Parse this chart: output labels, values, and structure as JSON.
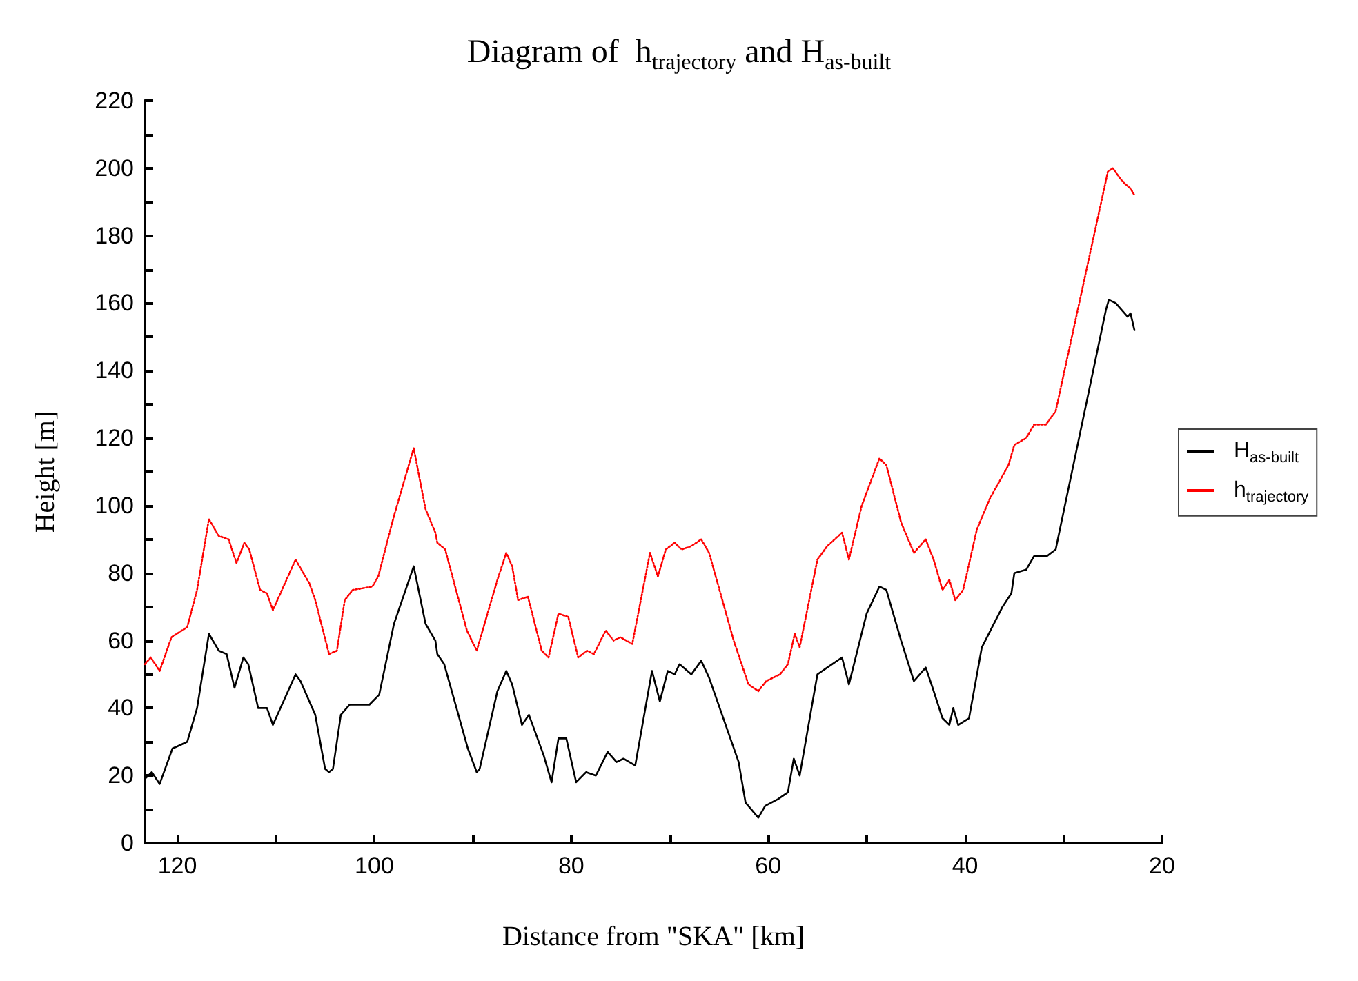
{
  "chart_data": {
    "type": "line",
    "title": "Diagram of  h$_{trajectory}$ and H$_{as-built}$",
    "xlabel": "Distance from \"SKA\" [km]",
    "ylabel": "Height [m]",
    "xlim": [
      123.3,
      20
    ],
    "xticks": [
      120,
      {
        "value": 110,
        "label": null
      },
      100,
      {
        "value": 90,
        "label": null
      },
      80,
      {
        "value": 70,
        "label": null
      },
      60,
      {
        "value": 50,
        "label": null
      },
      40,
      {
        "value": 30,
        "label": null
      },
      20
    ],
    "ylim": [
      0,
      220
    ],
    "yticks": [
      0,
      {
        "value": 10,
        "label": null
      },
      20,
      {
        "value": 30,
        "label": null
      },
      40,
      {
        "value": 50,
        "label": null
      },
      60,
      {
        "value": 70,
        "label": null
      },
      80,
      {
        "value": 90,
        "label": null
      },
      100,
      {
        "value": 110,
        "label": null
      },
      120,
      {
        "value": 130,
        "label": null
      },
      140,
      {
        "value": 150,
        "label": null
      },
      160,
      {
        "value": 170,
        "label": null
      },
      180,
      {
        "value": 190,
        "label": null
      },
      200,
      {
        "value": 210,
        "label": null
      },
      220
    ],
    "grid": false,
    "legend": "right",
    "marker": "none",
    "series": [
      {
        "name": "H$_{as-built}$",
        "color": "#000000",
        "line_style": "solid",
        "x": [
          123.3,
          122.6,
          121.8,
          120.5,
          119,
          118,
          116.8,
          115.8,
          115,
          114.2,
          113.3,
          112.8,
          111.8,
          110.9,
          110.3,
          108,
          107.5,
          106,
          105,
          104.6,
          104.2,
          103.4,
          102.5,
          100.5,
          99.5,
          98,
          96,
          94.8,
          93.8,
          93.6,
          92.9,
          90.5,
          89.6,
          89.3,
          87.5,
          86.6,
          86,
          85,
          84.3,
          82.8,
          82,
          81.3,
          80.5,
          79.5,
          78.5,
          77.5,
          76.3,
          75.4,
          74.7,
          73.5,
          71.8,
          71,
          70.2,
          69.5,
          69,
          67.8,
          66.8,
          66,
          63,
          62.3,
          61,
          60.3,
          59,
          58,
          57.4,
          56.8,
          55,
          54,
          52.5,
          51.8,
          50,
          48.7,
          48,
          46.5,
          45.2,
          44,
          43.3,
          42.3,
          41.6,
          41.2,
          40.7,
          39.6,
          38.3,
          36.2,
          35.3,
          35,
          33.8,
          33,
          31.7,
          30.8,
          25.7,
          25.4,
          24.7,
          23.5,
          23.2,
          22.8
        ],
        "values": [
          19,
          21,
          17.5,
          28,
          30,
          40,
          62,
          57,
          56,
          46,
          55,
          53,
          40,
          40,
          35,
          50,
          48,
          38,
          22,
          21,
          22,
          38,
          41,
          41,
          44,
          65,
          82,
          65,
          60,
          56,
          53,
          28,
          21,
          22,
          45,
          51,
          47,
          35,
          38,
          26,
          18,
          31,
          31,
          18,
          21,
          20,
          27,
          24,
          25,
          23,
          51,
          42,
          51,
          50,
          53,
          50,
          54,
          49,
          24,
          12,
          7.5,
          11,
          13,
          15,
          25,
          20,
          50,
          52,
          55,
          47,
          68,
          76,
          75,
          60,
          48,
          52,
          46,
          37,
          35,
          40,
          35,
          37,
          58,
          70,
          74,
          80,
          81,
          85,
          85,
          87,
          158,
          161,
          160,
          156,
          157,
          152
        ]
      },
      {
        "name": "h$_{trajectory}$",
        "color": "#ff0000",
        "line_style": "dotted",
        "x": [
          123.3,
          122.7,
          121.8,
          120.6,
          119,
          118,
          116.8,
          115.8,
          114.8,
          114,
          113.2,
          112.7,
          111.6,
          110.9,
          110.3,
          108,
          106.6,
          106,
          104.6,
          103.8,
          103,
          102.2,
          100.2,
          99.6,
          98,
          96,
          94.8,
          93.8,
          93.6,
          92.8,
          90.6,
          89.6,
          87.5,
          86.6,
          86,
          85.4,
          84.4,
          83,
          82.3,
          81.3,
          80.3,
          79.3,
          78.4,
          77.7,
          76.5,
          75.7,
          75,
          73.8,
          72,
          71.2,
          70.4,
          69.5,
          68.8,
          67.8,
          66.8,
          66,
          63.5,
          62,
          61,
          60.2,
          58.8,
          58,
          57.3,
          56.8,
          55,
          54,
          52.5,
          51.8,
          50.5,
          48.7,
          48,
          46.5,
          45.2,
          44,
          43.2,
          42.3,
          41.6,
          41,
          40.2,
          38.8,
          37.5,
          35.6,
          35,
          33.8,
          33,
          31.8,
          30.8,
          25.5,
          25,
          24,
          23.2,
          22.8
        ],
        "values": [
          53,
          55,
          51,
          61,
          64,
          75,
          96,
          91,
          90,
          83,
          89,
          87,
          75,
          74,
          69,
          84,
          77,
          72,
          56,
          57,
          72,
          75,
          76,
          79,
          97,
          117,
          99,
          92,
          89,
          87,
          63,
          57,
          78,
          86,
          82,
          72,
          73,
          57,
          55,
          68,
          67,
          55,
          57,
          56,
          63,
          60,
          61,
          59,
          86,
          79,
          87,
          89,
          87,
          88,
          90,
          86,
          60,
          47,
          45,
          48,
          50,
          53,
          62,
          58,
          84,
          88,
          92,
          84,
          100,
          114,
          112,
          95,
          86,
          90,
          84,
          75,
          78,
          72,
          75,
          93,
          102,
          112,
          118,
          120,
          124,
          124,
          128,
          199,
          200,
          196,
          194,
          192
        ]
      }
    ]
  }
}
